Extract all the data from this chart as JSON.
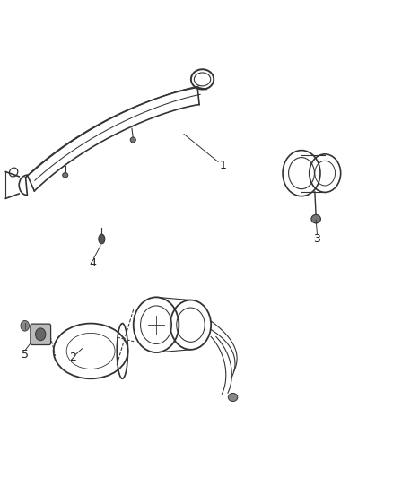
{
  "background_color": "#ffffff",
  "line_color": "#333333",
  "label_color": "#222222",
  "fig_width": 4.38,
  "fig_height": 5.33,
  "dpi": 100,
  "label_fontsize": 9
}
